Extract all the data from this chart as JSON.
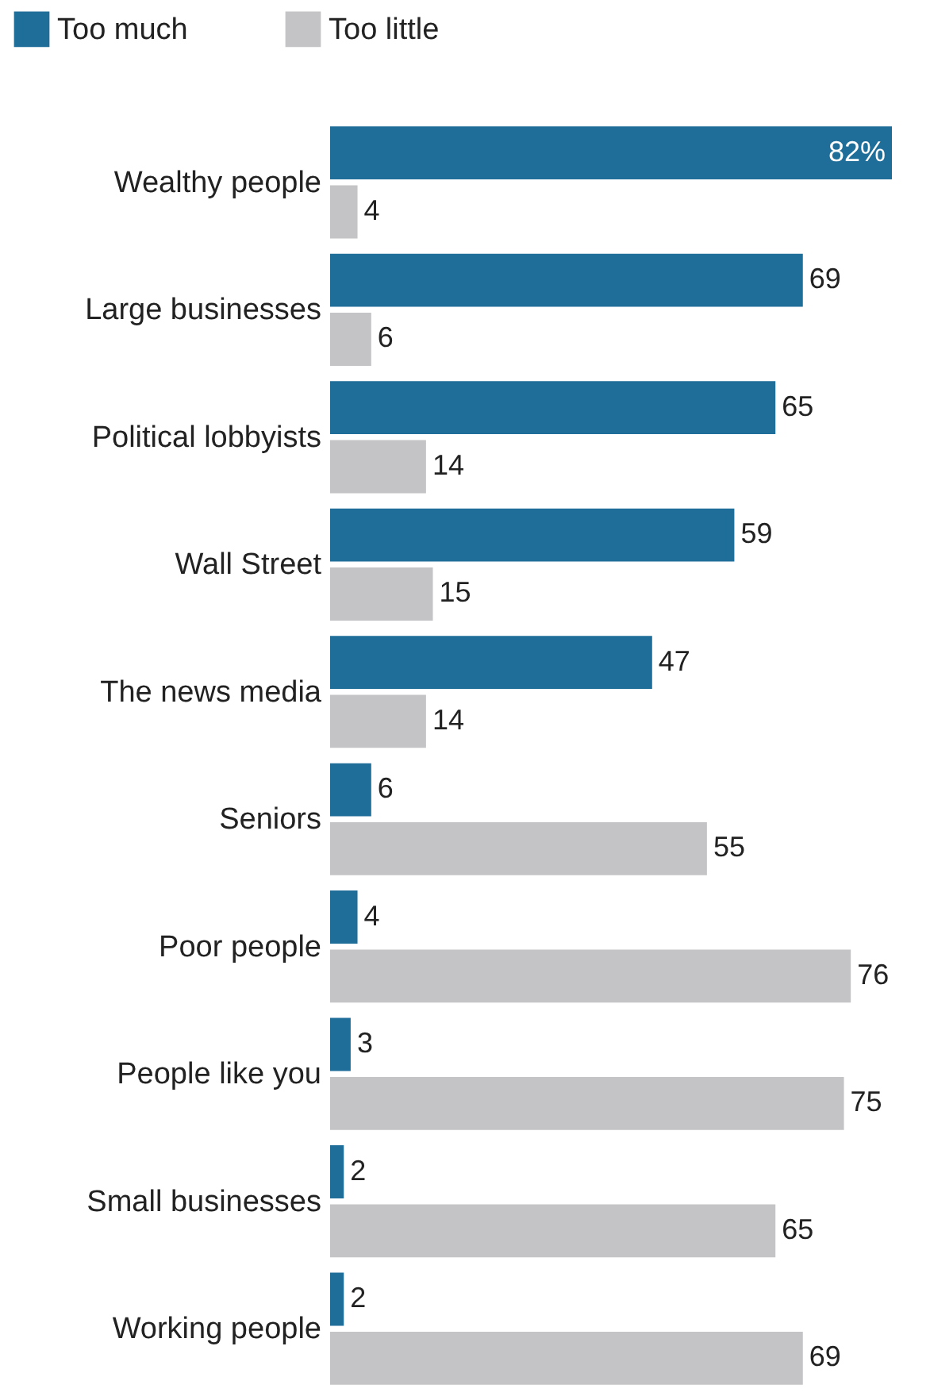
{
  "chart_data": {
    "type": "bar",
    "orientation": "horizontal",
    "legend": "top left",
    "categories": [
      "Wealthy people",
      "Large businesses",
      "Political lobbyists",
      "Wall Street",
      "The news media",
      "Seniors",
      "Poor people",
      "People like you",
      "Small businesses",
      "Working people"
    ],
    "series": [
      {
        "name": "Too much",
        "color": "#1f6d99",
        "values": [
          82,
          69,
          65,
          59,
          47,
          6,
          4,
          3,
          2,
          2
        ],
        "value_labels": [
          "82%",
          "69",
          "65",
          "59",
          "47",
          "6",
          "4",
          "3",
          "2",
          "2"
        ]
      },
      {
        "name": "Too little",
        "color": "#c4c4c6",
        "values": [
          4,
          6,
          14,
          15,
          14,
          55,
          76,
          75,
          65,
          69
        ],
        "value_labels": [
          "4",
          "6",
          "14",
          "15",
          "14",
          "55",
          "76",
          "75",
          "65",
          "69"
        ]
      }
    ]
  }
}
